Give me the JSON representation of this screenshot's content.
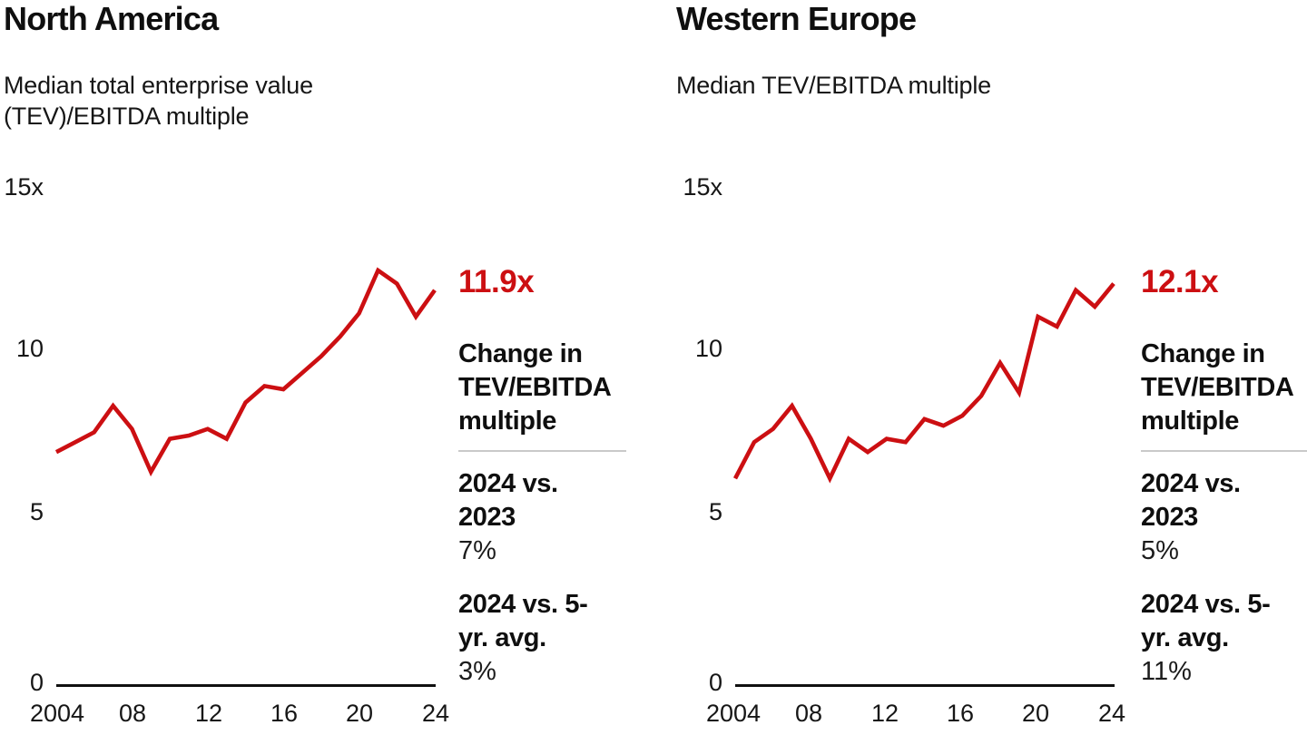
{
  "colors": {
    "accent": "#cc0f12",
    "text": "#0f0f0f",
    "divider": "#c9c9c9",
    "background": "#ffffff",
    "axis": "#101010"
  },
  "chart_data": [
    {
      "type": "line",
      "title": "North America",
      "subtitle": "Median total enterprise value (TEV)/EBITDA multiple",
      "x": [
        2004,
        2005,
        2006,
        2007,
        2008,
        2009,
        2010,
        2011,
        2012,
        2013,
        2014,
        2015,
        2016,
        2017,
        2018,
        2019,
        2020,
        2021,
        2022,
        2023,
        2024
      ],
      "values": [
        7.0,
        7.3,
        7.6,
        8.4,
        7.7,
        6.4,
        7.4,
        7.5,
        7.7,
        7.4,
        8.5,
        9.0,
        8.9,
        9.4,
        9.9,
        10.5,
        11.2,
        12.5,
        12.1,
        11.1,
        11.9
      ],
      "ylim": [
        0,
        15
      ],
      "y_unit": "x",
      "y_tick_labels": [
        "15x",
        "10",
        "5",
        "0"
      ],
      "y_tick_values": [
        15,
        10,
        5,
        0
      ],
      "x_tick_labels": [
        "2004",
        "08",
        "12",
        "16",
        "20",
        "24"
      ],
      "x_tick_values": [
        2004,
        2008,
        2012,
        2016,
        2020,
        2024
      ],
      "grid": false,
      "legend": "none",
      "line_color": "#cc0f12",
      "end_label": "11.9x",
      "end_value": 11.9,
      "annotation": {
        "heading": "Change in TEV/EBITDA multiple",
        "stats": [
          {
            "label": "2024 vs. 2023",
            "value": "7%"
          },
          {
            "label": "2024 vs. 5-yr. avg.",
            "value": "3%"
          }
        ]
      }
    },
    {
      "type": "line",
      "title": "Western Europe",
      "subtitle": "Median TEV/EBITDA multiple",
      "x": [
        2004,
        2005,
        2006,
        2007,
        2008,
        2009,
        2010,
        2011,
        2012,
        2013,
        2014,
        2015,
        2016,
        2017,
        2018,
        2019,
        2020,
        2021,
        2022,
        2023,
        2024
      ],
      "values": [
        6.2,
        7.3,
        7.7,
        8.4,
        7.4,
        6.2,
        7.4,
        7.0,
        7.4,
        7.3,
        8.0,
        7.8,
        8.1,
        8.7,
        9.7,
        8.8,
        11.1,
        10.8,
        11.9,
        11.4,
        12.1
      ],
      "ylim": [
        0,
        15
      ],
      "y_unit": "x",
      "y_tick_labels": [
        "15x",
        "10",
        "5",
        "0"
      ],
      "y_tick_values": [
        15,
        10,
        5,
        0
      ],
      "x_tick_labels": [
        "2004",
        "08",
        "12",
        "16",
        "20",
        "24"
      ],
      "x_tick_values": [
        2004,
        2008,
        2012,
        2016,
        2020,
        2024
      ],
      "grid": false,
      "legend": "none",
      "line_color": "#cc0f12",
      "end_label": "12.1x",
      "end_value": 12.1,
      "annotation": {
        "heading": "Change in TEV/EBITDA multiple",
        "stats": [
          {
            "label": "2024 vs. 2023",
            "value": "5%"
          },
          {
            "label": "2024 vs. 5-yr. avg.",
            "value": "11%"
          }
        ]
      }
    }
  ]
}
